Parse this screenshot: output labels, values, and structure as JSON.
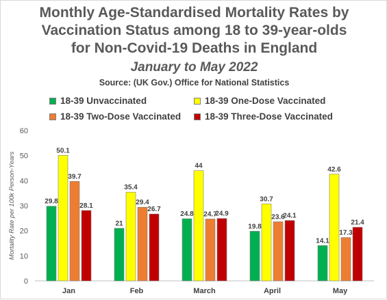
{
  "title_lines": [
    "Monthly Age-Standardised Mortality Rates by",
    "Vaccination Status among 18 to 39-year-olds",
    "for Non-Covid-19 Deaths in England"
  ],
  "subtitle": "January to May 2022",
  "source": "Source: (UK Gov.) Office for National Statistics",
  "chart_data": {
    "type": "bar",
    "title": "Monthly Age-Standardised Mortality Rates by Vaccination Status among 18 to 39-year-olds for Non-Covid-19 Deaths in England",
    "subtitle": "January to May 2022",
    "categories": [
      "Jan",
      "Feb",
      "March",
      "April",
      "May"
    ],
    "series": [
      {
        "name": "18-39 Unvaccinated",
        "color": "#00b050",
        "values": [
          29.8,
          21,
          24.8,
          19.8,
          14.1
        ]
      },
      {
        "name": "18-39 One-Dose Vaccinated",
        "color": "#ffff00",
        "values": [
          50.1,
          35.4,
          44,
          30.7,
          42.6
        ]
      },
      {
        "name": "18-39 Two-Dose Vaccinated",
        "color": "#ed7d31",
        "values": [
          39.7,
          29.4,
          24.7,
          23.6,
          17.3
        ]
      },
      {
        "name": "18-39 Three-Dose Vaccinated",
        "color": "#c00000",
        "values": [
          28.1,
          26.7,
          24.9,
          24.1,
          21.4
        ]
      }
    ],
    "ylabel": "Mortality Rate per 100k Person-Years",
    "xlabel": "",
    "ylim": [
      0,
      60
    ],
    "yticks": [
      0,
      10,
      20,
      30,
      40,
      50,
      60
    ],
    "grid": false,
    "legend": "top"
  }
}
